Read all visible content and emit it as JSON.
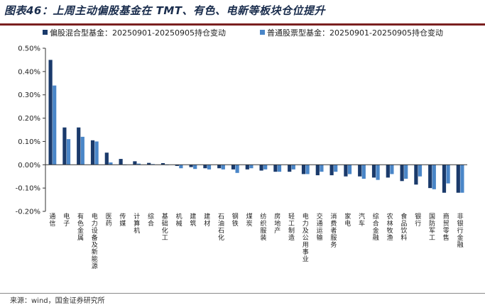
{
  "header": {
    "title": "图表46：上周主动偏股基金在 TMT、有色、电新等板块仓位提升"
  },
  "footer": {
    "source": "来源：wind，国金证券研究所"
  },
  "chart_data": {
    "type": "bar",
    "ylim": [
      -0.002,
      0.005
    ],
    "yticks": [
      "-0.20%",
      "-0.10%",
      "0.00%",
      "0.10%",
      "0.20%",
      "0.30%",
      "0.40%",
      "0.50%"
    ],
    "ytick_values": [
      -0.002,
      -0.001,
      0,
      0.001,
      0.002,
      0.003,
      0.004,
      0.005
    ],
    "grid": false,
    "legend_position": "top-left",
    "categories": [
      "通信",
      "电子",
      "有色金属",
      "电力设备及新能源",
      "医药",
      "传媒",
      "计算机",
      "综合",
      "基础化工",
      "机械",
      "建筑",
      "建材",
      "石油石化",
      "钢铁",
      "煤炭",
      "纺织服装",
      "房地产",
      "轻工制造",
      "电力及公用事业",
      "交通运输",
      "消费者服务",
      "家电",
      "汽车",
      "综合金融",
      "农林牧渔",
      "食品饮料",
      "银行",
      "国防军工",
      "商贸零售",
      "非银行金融"
    ],
    "series": [
      {
        "name": "偏股混合型基金：20250901-20250905持仓变动",
        "color": "#1a3a6b",
        "values": [
          0.0045,
          0.0016,
          0.0016,
          0.00105,
          0.00052,
          0.00025,
          0.00015,
          8e-05,
          7e-05,
          -5e-05,
          -0.0001,
          -0.00015,
          -0.00015,
          -0.0002,
          -0.0002,
          -0.00025,
          -0.0003,
          -0.0003,
          -0.0004,
          -0.00045,
          -0.00045,
          -0.0005,
          -0.0005,
          -0.00055,
          -0.00055,
          -0.0007,
          -0.00085,
          -0.001,
          -0.0012,
          -0.0012
        ]
      },
      {
        "name": "普通股票型基金：20250901-20250905持仓变动",
        "color": "#4a86c8",
        "values": [
          0.0034,
          0.0011,
          0.0012,
          0.001,
          0.0001,
          0.0,
          5e-05,
          3e-05,
          0.0,
          -0.00015,
          -0.00018,
          -0.0002,
          -0.0002,
          -0.00035,
          -0.00015,
          -0.0002,
          -0.0003,
          -0.0002,
          -0.0004,
          -0.0003,
          -0.0003,
          -0.0004,
          -0.0006,
          -0.00065,
          -0.0004,
          -0.0006,
          -0.0005,
          -0.00105,
          -0.0008,
          -0.0012
        ]
      }
    ]
  }
}
